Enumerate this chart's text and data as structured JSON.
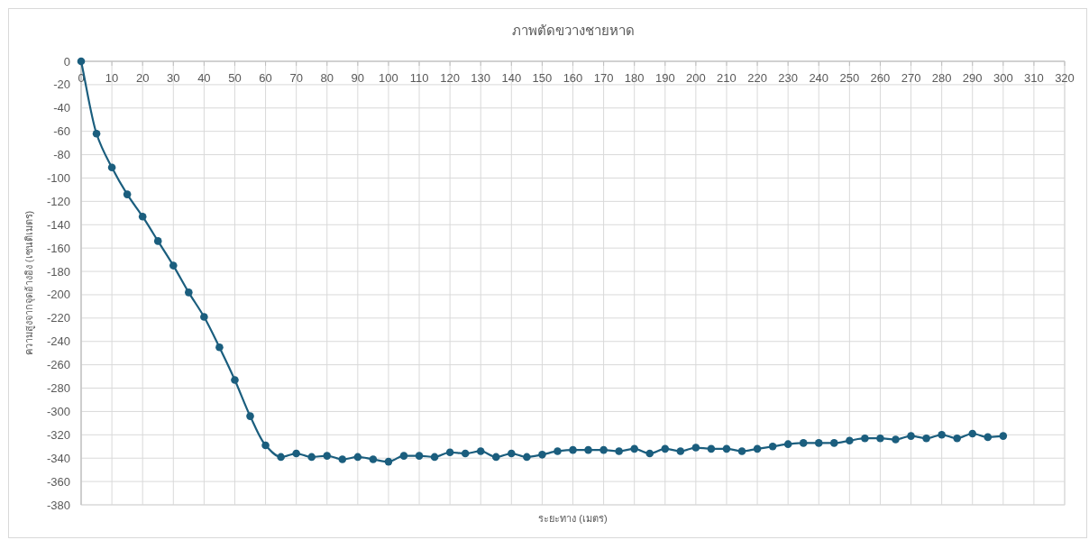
{
  "chart_data": {
    "type": "line",
    "title": "ภาพตัดขวางชายหาด",
    "xlabel": "ระยะทาง (เมตร)",
    "ylabel": "ความสูงจากจุดอ้างอิง (เซนติเมตร)",
    "x": [
      0,
      5,
      10,
      15,
      20,
      25,
      30,
      35,
      40,
      45,
      50,
      55,
      60,
      65,
      70,
      75,
      80,
      85,
      90,
      95,
      100,
      105,
      110,
      115,
      120,
      125,
      130,
      135,
      140,
      145,
      150,
      155,
      160,
      165,
      170,
      175,
      180,
      185,
      190,
      195,
      200,
      205,
      210,
      215,
      220,
      225,
      230,
      235,
      240,
      245,
      250,
      255,
      260,
      265,
      270,
      275,
      280,
      285,
      290,
      295,
      300
    ],
    "series": [
      {
        "color": "#1b5e7e",
        "values": [
          0,
          -62,
          -91,
          -114,
          -133,
          -154,
          -175,
          -198,
          -219,
          -245,
          -273,
          -304,
          -329,
          -339,
          -336,
          -339,
          -338,
          -341,
          -339,
          -341,
          -343,
          -338,
          -338,
          -339,
          -335,
          -336,
          -334,
          -339,
          -336,
          -339,
          -337,
          -334,
          -333,
          -333,
          -333,
          -334,
          -332,
          -336,
          -332,
          -334,
          -331,
          -332,
          -332,
          -334,
          -332,
          -330,
          -328,
          -327,
          -327,
          -327,
          -325,
          -323,
          -323,
          -324,
          -321,
          -323,
          -320,
          -323,
          -319,
          -322,
          -321
        ]
      }
    ],
    "xlim": [
      0,
      320
    ],
    "xticks": [
      0,
      10,
      20,
      30,
      40,
      50,
      60,
      70,
      80,
      90,
      100,
      110,
      120,
      130,
      140,
      150,
      160,
      170,
      180,
      190,
      200,
      210,
      220,
      230,
      240,
      250,
      260,
      270,
      280,
      290,
      300,
      310,
      320
    ],
    "ylim": [
      -380,
      0
    ],
    "yticks": [
      0,
      -20,
      -40,
      -60,
      -80,
      -100,
      -120,
      -140,
      -160,
      -180,
      -200,
      -220,
      -240,
      -260,
      -280,
      -300,
      -320,
      -340,
      -360,
      -380
    ],
    "grid": true,
    "marker": "circle",
    "line_style": "solid"
  }
}
